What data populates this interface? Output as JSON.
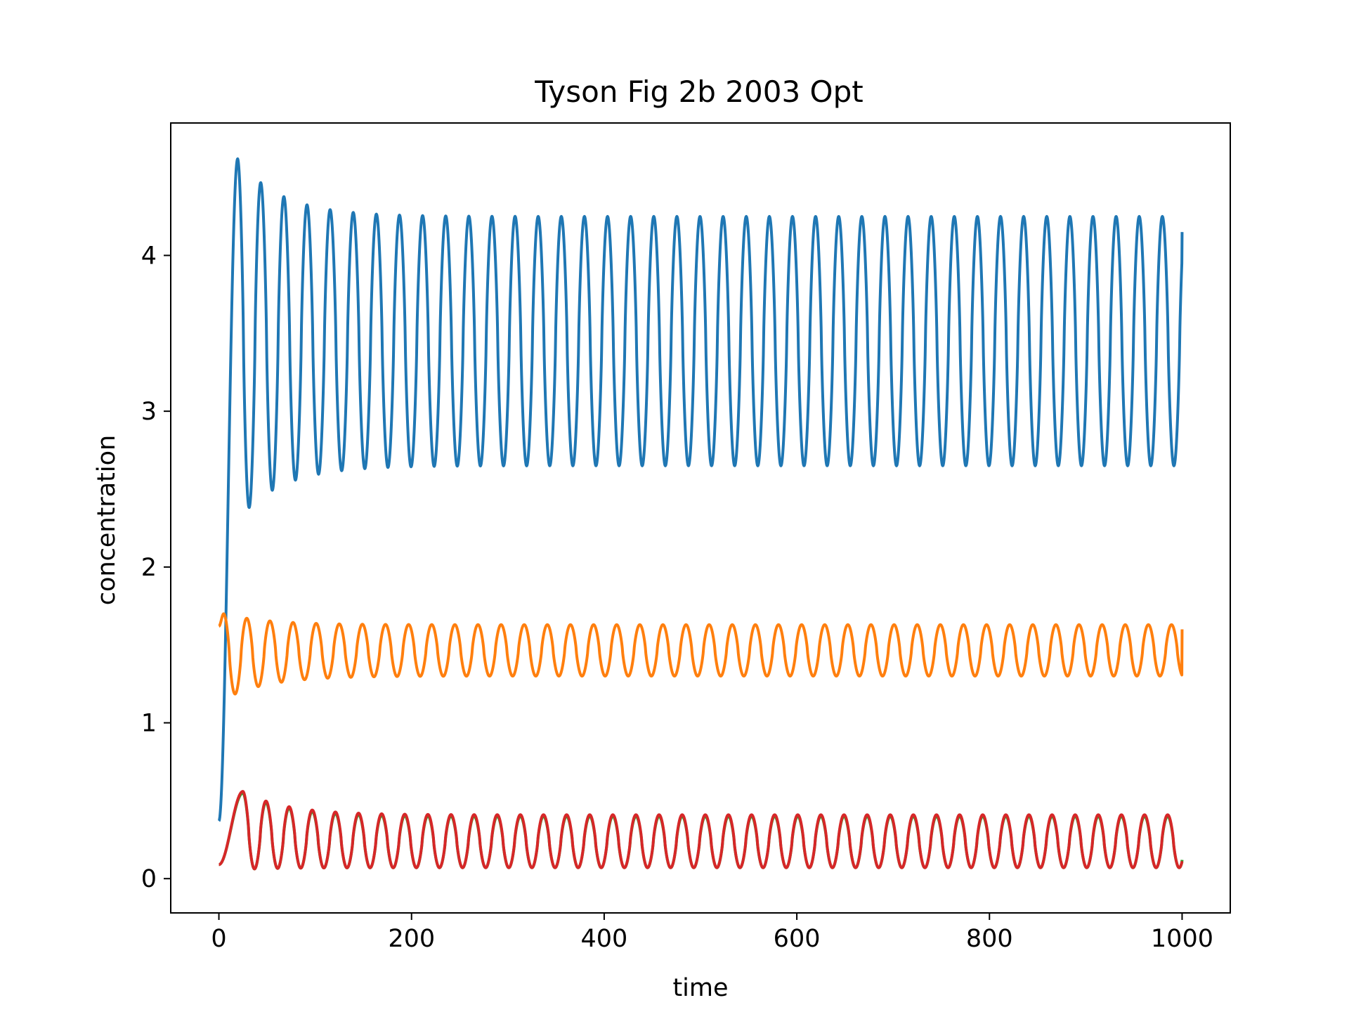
{
  "chart_data": {
    "type": "line",
    "title": "Tyson Fig 2b 2003 Opt",
    "xlabel": "time",
    "ylabel": "concentration",
    "xlim": [
      -50,
      1050
    ],
    "ylim": [
      -0.22,
      4.85
    ],
    "xticks": [
      0,
      200,
      400,
      600,
      800,
      1000
    ],
    "yticks": [
      0,
      1,
      2,
      3,
      4
    ],
    "grid": false,
    "legend": "none",
    "series": [
      {
        "color": "#1f77b4",
        "model": {
          "t_start": 0,
          "t_end": 1000,
          "y0": 0.37,
          "period": 24.0,
          "first_peak_t": 19.5,
          "first_peak": 4.62,
          "first_trough": 2.3,
          "settled_peak": 4.25,
          "settled_trough": 2.65,
          "end_value": 4.15
        }
      },
      {
        "color": "#ff7f0e",
        "model": {
          "t_start": 0,
          "t_end": 1000,
          "y0": 1.62,
          "period": 24.0,
          "first_peak_t": 5.0,
          "first_peak": 1.7,
          "first_trough": 1.15,
          "settled_peak": 1.63,
          "settled_trough": 1.3,
          "end_value": 1.6
        }
      },
      {
        "color": "#2ca02c",
        "model": {
          "t_start": 0,
          "t_end": 1000,
          "y0": 0.09,
          "period": 24.0,
          "first_peak_t": 25.0,
          "first_peak": 0.55,
          "first_trough": 0.06,
          "settled_peak": 0.4,
          "settled_trough": 0.07,
          "end_value": 0.12
        }
      },
      {
        "color": "#d62728",
        "model": {
          "t_start": 0,
          "t_end": 1000,
          "y0": 0.09,
          "period": 24.0,
          "first_peak_t": 25.0,
          "first_peak": 0.56,
          "first_trough": 0.06,
          "settled_peak": 0.41,
          "settled_trough": 0.07,
          "end_value": 0.1
        }
      }
    ]
  }
}
